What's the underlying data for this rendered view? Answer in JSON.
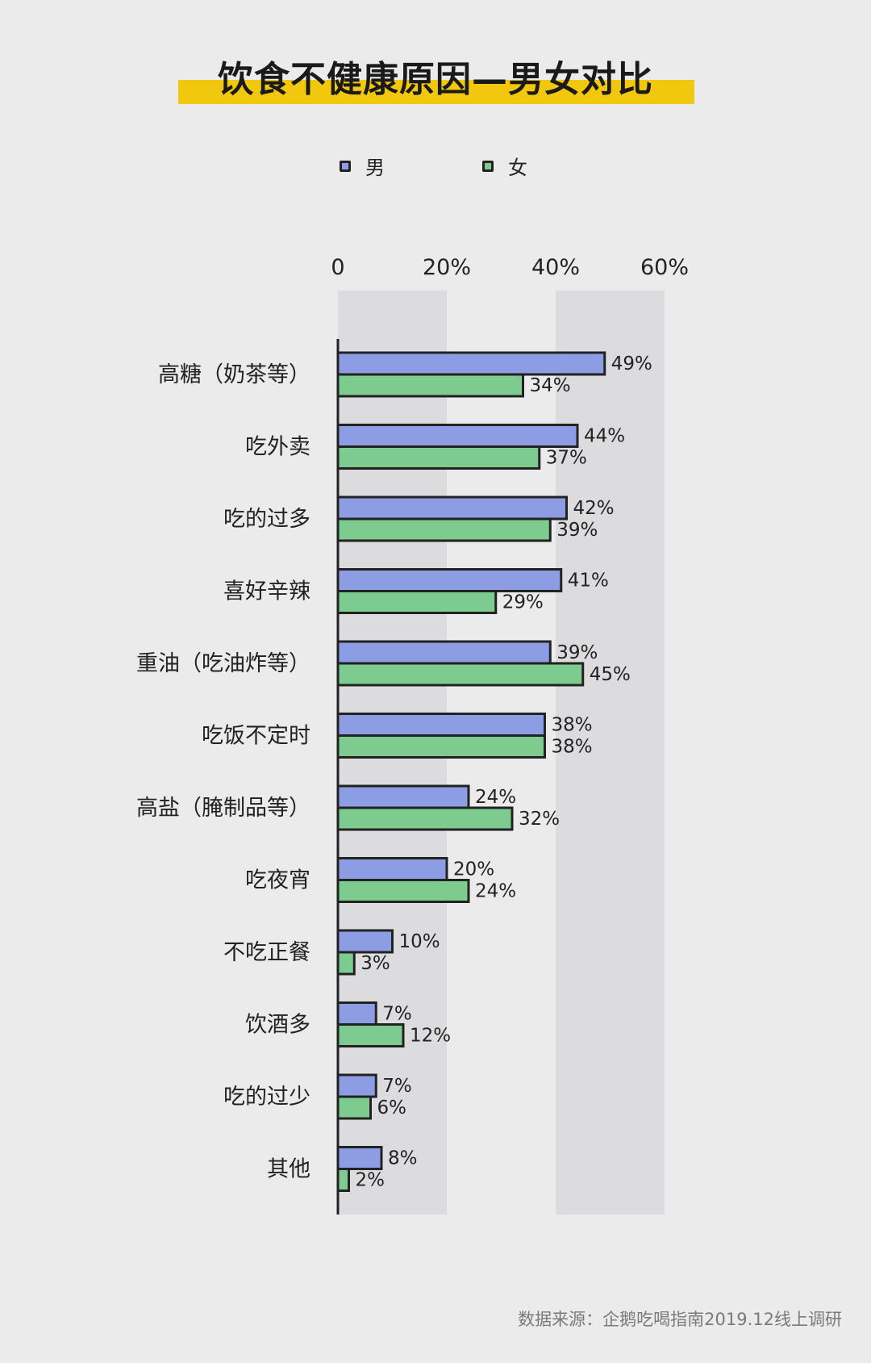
{
  "title": "饮食不健康原因—男女对比",
  "source": "数据来源：企鹅吃喝指南2019.12线上调研",
  "colors": {
    "male": "#8c9de4",
    "female": "#7ecb8f",
    "band": "#dcdcde",
    "title_bar": "#f2c80f",
    "outline": "#222222"
  },
  "chart_data": {
    "type": "bar",
    "orientation": "horizontal",
    "title": "饮食不健康原因—男女对比",
    "xlabel": "",
    "ylabel": "",
    "xlim": [
      0,
      60
    ],
    "x_ticks": [
      "0",
      "20%",
      "40%",
      "60%"
    ],
    "x_tick_values": [
      0,
      20,
      40,
      60
    ],
    "legend_position": "top",
    "categories": [
      "高糖（奶茶等）",
      "吃外卖",
      "吃的过多",
      "喜好辛辣",
      "重油（吃油炸等）",
      "吃饭不定时",
      "高盐（腌制品等）",
      "吃夜宵",
      "不吃正餐",
      "饮酒多",
      "吃的过少",
      "其他"
    ],
    "series": [
      {
        "name": "男",
        "values": [
          49,
          44,
          42,
          41,
          39,
          38,
          24,
          20,
          10,
          7,
          7,
          8
        ]
      },
      {
        "name": "女",
        "values": [
          34,
          37,
          39,
          29,
          45,
          38,
          32,
          24,
          3,
          12,
          6,
          2
        ]
      }
    ]
  }
}
